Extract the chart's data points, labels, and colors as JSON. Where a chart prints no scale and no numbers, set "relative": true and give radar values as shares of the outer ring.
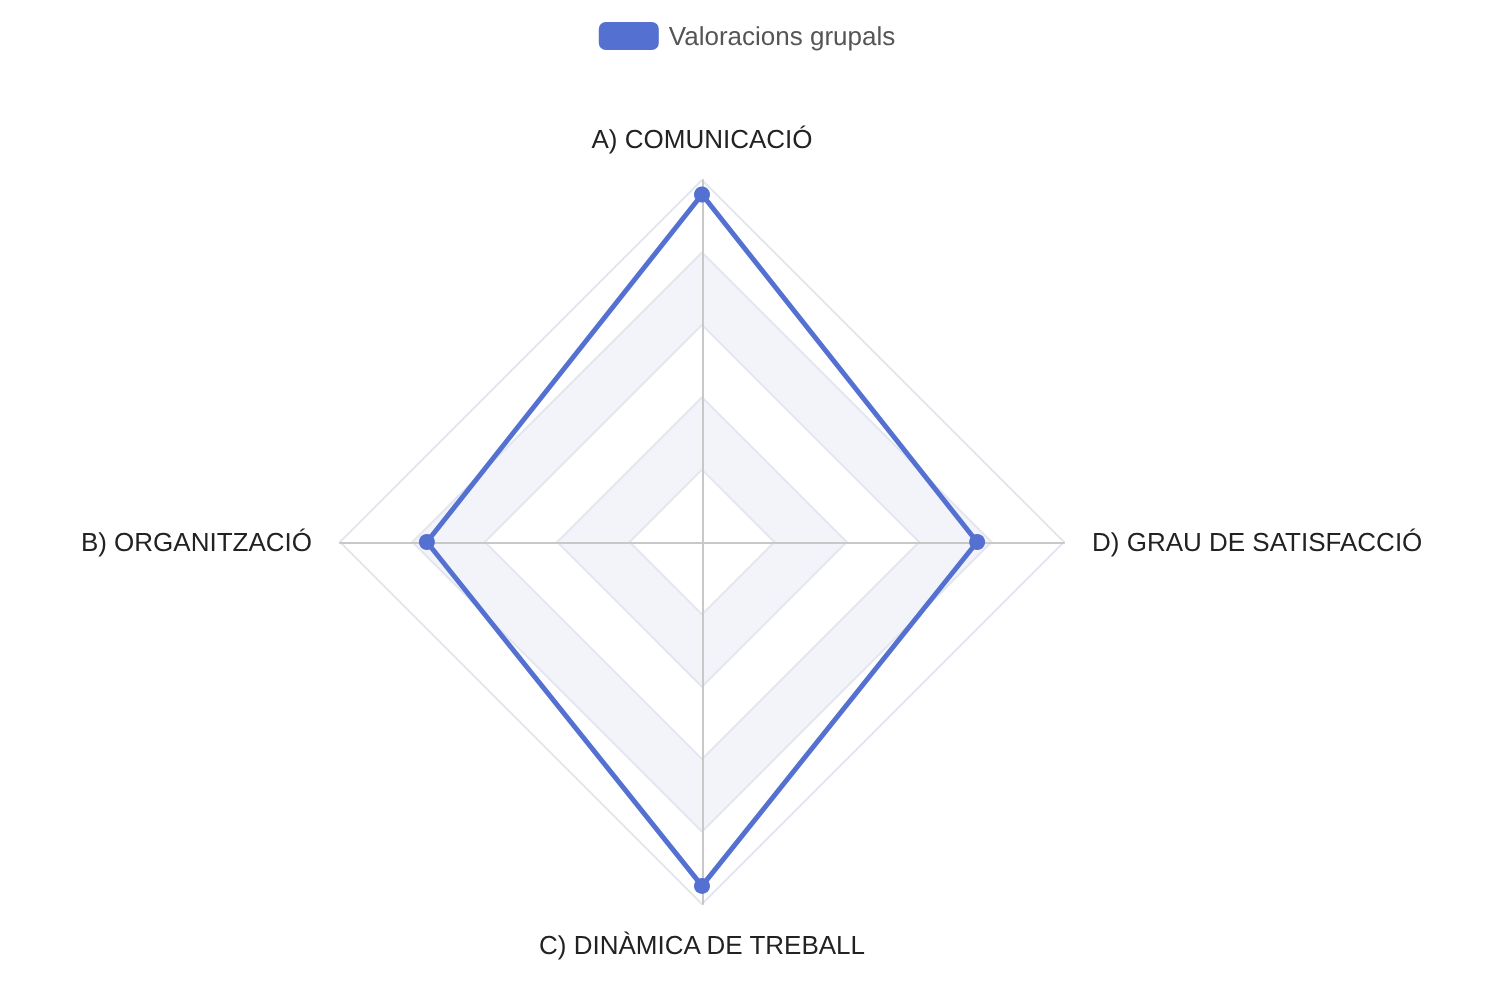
{
  "chart_data": {
    "type": "radar",
    "relative": true,
    "legend": "top",
    "marker": "circle",
    "categories": [
      "A) COMUNICACIÓ",
      "D) GRAU DE SATISFACCIÓ",
      "C) DINÀMICA DE TREBALL",
      "B) ORGANITZACIÓ"
    ],
    "series": [
      {
        "name": "Valoracions grupals",
        "color": "#5470d0",
        "values": [
          0.96,
          0.76,
          0.95,
          0.76
        ]
      }
    ]
  }
}
